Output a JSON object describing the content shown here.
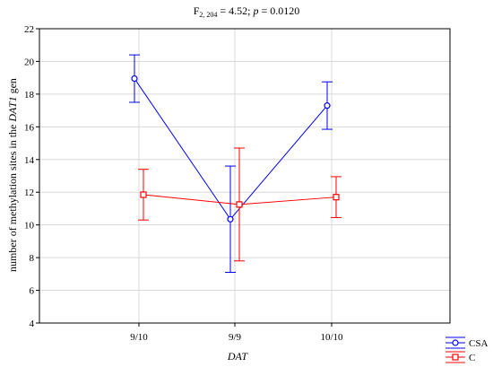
{
  "chart_data": {
    "type": "line",
    "title_parts": {
      "prefix": "F",
      "subscript": "2, 204",
      "middle": " = 4.52; ",
      "p_label": "p",
      "suffix": " = 0.0120"
    },
    "xlabel": "DAT",
    "ylabel_parts": {
      "before": "number of methylation sites in the ",
      "italic": "DAT1",
      "after": " gen"
    },
    "categories": [
      "9/10",
      "9/9",
      "10/10"
    ],
    "ylim": [
      4,
      22
    ],
    "yticks": [
      "4",
      "6",
      "8",
      "10",
      "12",
      "14",
      "16",
      "18",
      "20",
      "22"
    ],
    "grid": true,
    "legend_position": "bottom-right",
    "series": [
      {
        "name": "CSA",
        "color": "#0000ff",
        "marker": "circle",
        "values": [
          18.95,
          10.35,
          17.3
        ],
        "lower": [
          17.5,
          7.1,
          15.85
        ],
        "upper": [
          20.4,
          13.6,
          18.75
        ]
      },
      {
        "name": "C",
        "color": "#ff0000",
        "marker": "square",
        "values": [
          11.85,
          11.25,
          11.7
        ],
        "lower": [
          10.3,
          7.8,
          10.45
        ],
        "upper": [
          13.4,
          14.7,
          12.95
        ]
      }
    ]
  }
}
